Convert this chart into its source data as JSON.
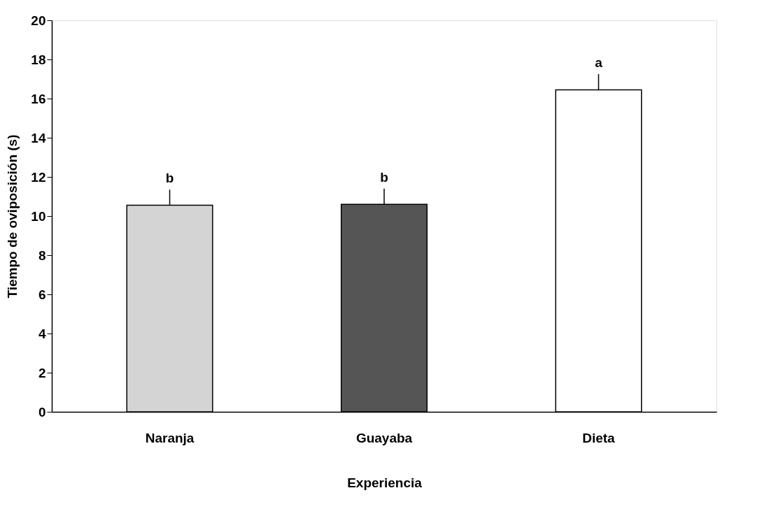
{
  "chart_data": {
    "type": "bar",
    "xlabel": "Experiencia",
    "ylabel": "Tiempo de oviposición (s)",
    "categories": [
      "Naranja",
      "Guayaba",
      "Dieta"
    ],
    "values": [
      10.55,
      10.6,
      16.45
    ],
    "colors": [
      "#d4d4d4",
      "#555555",
      "#ffffff"
    ],
    "errors": [
      0.8,
      0.8,
      0.8
    ],
    "ylim": [
      0,
      20
    ],
    "yticks": [
      0,
      2,
      4,
      6,
      8,
      10,
      12,
      14,
      16,
      18,
      20
    ],
    "grid": false,
    "annotations": [
      {
        "text": "b",
        "x": "Naranja",
        "y": 11.35
      },
      {
        "text": "b",
        "x": "Guayaba",
        "y": 11.4
      },
      {
        "text": "a",
        "x": "Dieta",
        "y": 17.25
      }
    ]
  }
}
